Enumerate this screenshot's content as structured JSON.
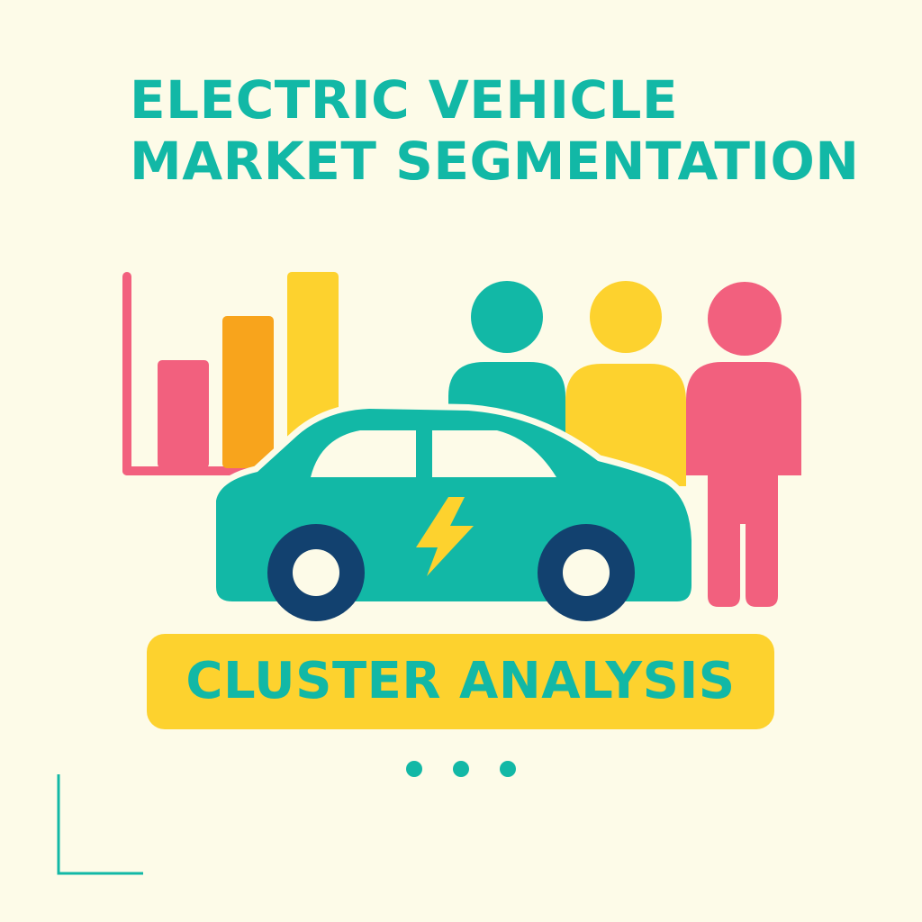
{
  "title": {
    "line_1": "ELECTRIC VEHICLE",
    "line_2": "MARKET SEGMENTATION"
  },
  "banner": {
    "label": "CLUSTER ANALYSIS"
  },
  "icons": {
    "chart": "bar-chart-icon",
    "people": "people-group-icon",
    "car": "electric-car-icon",
    "bolt": "lightning-bolt-icon",
    "dots": "ellipsis-icon",
    "corner": "corner-bracket-icon"
  },
  "colors": {
    "background": "#FDFBE8",
    "teal": "#12B8A6",
    "yellow": "#FDD22E",
    "orange": "#F8A41C",
    "pink": "#F2607E",
    "navy": "#12416F",
    "window": "#FDFBE8"
  }
}
